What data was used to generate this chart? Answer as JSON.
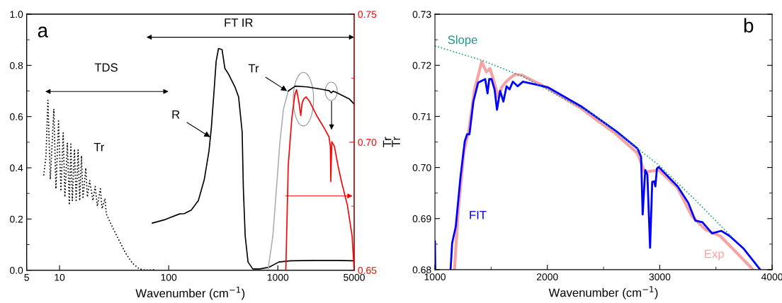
{
  "chart_data": [
    {
      "type": "line",
      "xlabel": "Wavenumber (cm$^{−1}$)",
      "y2label": "Tr",
      "log": "x",
      "legend": false,
      "grid": false,
      "xlim": [
        5,
        5000
      ],
      "xticks": [
        5,
        10,
        100,
        1000,
        5000
      ],
      "ylim": [
        0,
        1
      ],
      "yticks": [
        {
          "value": 0,
          "label": "0.0"
        },
        {
          "value": 0.2,
          "label": "0.2"
        },
        {
          "value": 0.4,
          "label": "0.4"
        },
        {
          "value": 0.6,
          "label": "0.6"
        },
        {
          "value": 0.8,
          "label": "0.8"
        },
        {
          "value": 1,
          "label": "1.0"
        }
      ],
      "y2lim": [
        0.65,
        0.75
      ],
      "y2ticks": [
        {
          "value": 0.65,
          "label": "0.65"
        },
        {
          "value": 0.7,
          "label": "0.70"
        },
        {
          "value": 0.75,
          "label": "0.75"
        }
      ],
      "series": [
        {
          "color": "#000000",
          "line_style": "dotted",
          "x": [
            7.16,
            7.5,
            7.83,
            8.23,
            8.87,
            9.27,
            9.79,
            10.3,
            10.8,
            11.2,
            11.8,
            12.3,
            12.7,
            13.1,
            13.7,
            14.2,
            14.8,
            15.3,
            15.9,
            16.4,
            17.4,
            18.0,
            18.9,
            20.2,
            21.2,
            22.2,
            23.7,
            24.5,
            26.1,
            26.8,
            29.6,
            34.4,
            40,
            46.4,
            53.8,
            62.6,
            76.4
          ],
          "values": [
            0.37,
            0.44,
            0.664,
            0.355,
            0.63,
            0.318,
            0.583,
            0.309,
            0.536,
            0.286,
            0.496,
            0.255,
            0.493,
            0.272,
            0.473,
            0.267,
            0.47,
            0.272,
            0.447,
            0.279,
            0.399,
            0.286,
            0.35,
            0.272,
            0.327,
            0.25,
            0.318,
            0.24,
            0.28,
            0.22,
            0.18,
            0.124,
            0.069,
            0.028,
            0.005,
            0.0,
            0.002
          ]
        },
        {
          "color": "#000000",
          "x": [
            70.8,
            93,
            126,
            139,
            161,
            187,
            212,
            234,
            246,
            259,
            272,
            286,
            308,
            327,
            349,
            377,
            406,
            437,
            471,
            483,
            502,
            533,
            589,
            684,
            835,
            1019,
            1309,
            2155,
            3548,
            5000
          ],
          "values": [
            0.184,
            0.198,
            0.22,
            0.221,
            0.235,
            0.272,
            0.355,
            0.466,
            0.558,
            0.687,
            0.816,
            0.866,
            0.862,
            0.788,
            0.77,
            0.742,
            0.714,
            0.677,
            0.539,
            0.318,
            0.134,
            0.032,
            0.005,
            0.005,
            0.012,
            0.032,
            0.037,
            0.038,
            0.038,
            0.037
          ]
        },
        {
          "color": "#b0b0b0",
          "x": [
            815,
            900,
            970,
            1045,
            1127,
            1245
          ],
          "values": [
            0.005,
            0.134,
            0.318,
            0.502,
            0.631,
            0.7
          ]
        },
        {
          "color": "#000000",
          "x": [
            1245,
            1445,
            1855,
            2500,
            2950,
            3083,
            3200,
            3370,
            4540,
            5000
          ],
          "values": [
            0.7,
            0.719,
            0.716,
            0.707,
            0.701,
            0.693,
            0.699,
            0.696,
            0.668,
            0.649
          ]
        },
        {
          "color": "#ff0000",
          "axis": "y2",
          "x": [
            1183,
            1245,
            1343,
            1432,
            1483,
            1543,
            1622,
            1663,
            1722,
            1811,
            1953,
            2268,
            2633,
            2939,
            3025,
            3055,
            3116,
            3296,
            3548,
            3827,
            4333,
            4786,
            5000
          ],
          "values": [
            0.65,
            0.691,
            0.7094,
            0.7187,
            0.7205,
            0.7168,
            0.7104,
            0.715,
            0.7168,
            0.7177,
            0.7159,
            0.7104,
            0.7058,
            0.7021,
            0.6984,
            0.6846,
            0.7002,
            0.6984,
            0.691,
            0.6846,
            0.6754,
            0.6634,
            0.65
          ]
        }
      ],
      "annotations": [
        "a",
        "TDS",
        "FT IR",
        "Tr",
        {
          "text": "R",
          "x": 240,
          "y": 0.52
        },
        {
          "text": "Tr",
          "x": 1213,
          "y": 0.7
        }
      ]
    },
    {
      "type": "line",
      "xlabel": "Wavenumber (cm$^{−1}$)",
      "ylabel": "Tr",
      "legend": false,
      "grid": false,
      "xlim": [
        1000,
        4000
      ],
      "xticks": [
        1000,
        2000,
        3000,
        4000
      ],
      "ylim": [
        0.68,
        0.73
      ],
      "yticks": [
        {
          "value": 0.68,
          "label": "0.68"
        },
        {
          "value": 0.69,
          "label": "0.69"
        },
        {
          "value": 0.7,
          "label": "0.70"
        },
        {
          "value": 0.71,
          "label": "0.71"
        },
        {
          "value": 0.72,
          "label": "0.72"
        },
        {
          "value": 0.73,
          "label": "0.73"
        }
      ],
      "series": [
        {
          "name": "Exp",
          "color": "#f5a3a3",
          "x": [
            1174,
            1206,
            1258,
            1300,
            1352,
            1416,
            1458,
            1490,
            1531,
            1563,
            1594,
            1626,
            1668,
            1710,
            1773,
            2004,
            2298,
            2445,
            2592,
            2802,
            2865,
            2991,
            3159,
            3285,
            3411,
            3537,
            3663,
            3831
          ],
          "values": [
            0.68,
            0.6912,
            0.7032,
            0.7071,
            0.7152,
            0.7207,
            0.7187,
            0.7194,
            0.7164,
            0.7138,
            0.7157,
            0.7166,
            0.7175,
            0.7182,
            0.7181,
            0.7155,
            0.7116,
            0.7092,
            0.7069,
            0.7028,
            0.6991,
            0.6995,
            0.696,
            0.6905,
            0.6878,
            0.6866,
            0.6838,
            0.68
          ]
        },
        {
          "name": "FIT",
          "color": "#0000ff",
          "x": [
            1000,
            1003,
            1100,
            1139,
            1153,
            1185,
            1227,
            1265,
            1286,
            1307,
            1342,
            1384,
            1447,
            1468,
            1483,
            1504,
            1531,
            1552,
            1580,
            1609,
            1637,
            1664,
            1693,
            1735,
            1783,
            2004,
            2298,
            2403,
            2613,
            2802,
            2834,
            2848,
            2871,
            2890,
            2914,
            2933,
            2950,
            2961,
            2975,
            2991,
            3159,
            3254,
            3317,
            3380,
            3465,
            3548,
            3621,
            3747,
            3894
          ],
          "values": [
            0.6855,
            0.68,
            null,
            0.68,
            0.6852,
            0.6884,
            0.6981,
            0.7051,
            0.7065,
            0.7065,
            0.7129,
            0.7166,
            0.7173,
            0.7145,
            0.7173,
            0.7173,
            0.7152,
            0.7113,
            0.715,
            0.7129,
            0.7159,
            0.7153,
            0.7168,
            0.7159,
            0.7168,
            0.7157,
            0.712,
            0.7104,
            0.7071,
            0.7037,
            0.7021,
            0.6908,
            0.6995,
            0.6986,
            0.6843,
            0.6972,
            0.6973,
            0.6963,
            0.6998,
            0.7001,
            0.6963,
            0.6931,
            0.6896,
            0.6893,
            0.6871,
            0.6876,
            0.6866,
            0.6841,
            0.68
          ]
        },
        {
          "name": "Slope",
          "color": "#1a9a8a",
          "line_style": "dotted",
          "x": [
            1000,
            1416,
            1773,
            2400,
            2802,
            2991,
            3300,
            3650
          ],
          "values": [
            0.7238,
            0.721,
            0.7179,
            0.7105,
            0.7037,
            0.7005,
            0.694,
            0.6862
          ]
        }
      ],
      "annotations": [
        "b"
      ]
    }
  ]
}
